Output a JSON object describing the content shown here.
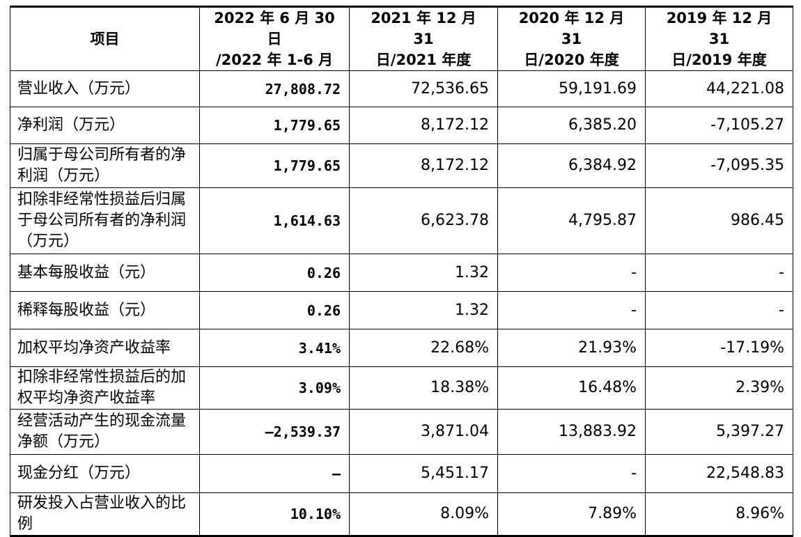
{
  "table": {
    "header": [
      [
        "项目"
      ],
      [
        "2022 年 6 月 30 日",
        "/2022 年 1-6 月"
      ],
      [
        "2021 年 12 月 31",
        "日/2021 年度"
      ],
      [
        "2020 年 12 月 31",
        "日/2020 年度"
      ],
      [
        "2019 年 12 月 31",
        "日/2019 年度"
      ]
    ],
    "rows": [
      [
        "营业收入（万元）",
        "27,808.72",
        "72,536.65",
        "59,191.69",
        "44,221.08"
      ],
      [
        "净利润（万元）",
        "1,779.65",
        "8,172.12",
        "6,385.20",
        "-7,105.27"
      ],
      [
        "归属于母公司所有者的净利润（万元）",
        "1,779.65",
        "8,172.12",
        "6,384.92",
        "-7,095.35"
      ],
      [
        "扣除非经常性损益后归属于母公司所有者的净利润（万元）",
        "1,614.63",
        "6,623.78",
        "4,795.87",
        "986.45"
      ],
      [
        "基本每股收益（元）",
        "0.26",
        "1.32",
        "-",
        "-"
      ],
      [
        "稀释每股收益（元）",
        "0.26",
        "1.32",
        "-",
        "-"
      ],
      [
        "加权平均净资产收益率",
        "3.41%",
        "22.68%",
        "21.93%",
        "-17.19%"
      ],
      [
        "扣除非经常性损益后的加权平均净资产收益率",
        "3.09%",
        "18.38%",
        "16.48%",
        "2.39%"
      ],
      [
        "经营活动产生的现金流量净额（万元）",
        "–2,539.37",
        "3,871.04",
        "13,883.92",
        "5,397.27"
      ],
      [
        "现金分红（万元）",
        "–",
        "5,451.17",
        "-",
        "22,548.83"
      ],
      [
        "研发投入占营业收入的比例",
        "10.10%",
        "8.09%",
        "7.89%",
        "8.96%"
      ]
    ]
  }
}
